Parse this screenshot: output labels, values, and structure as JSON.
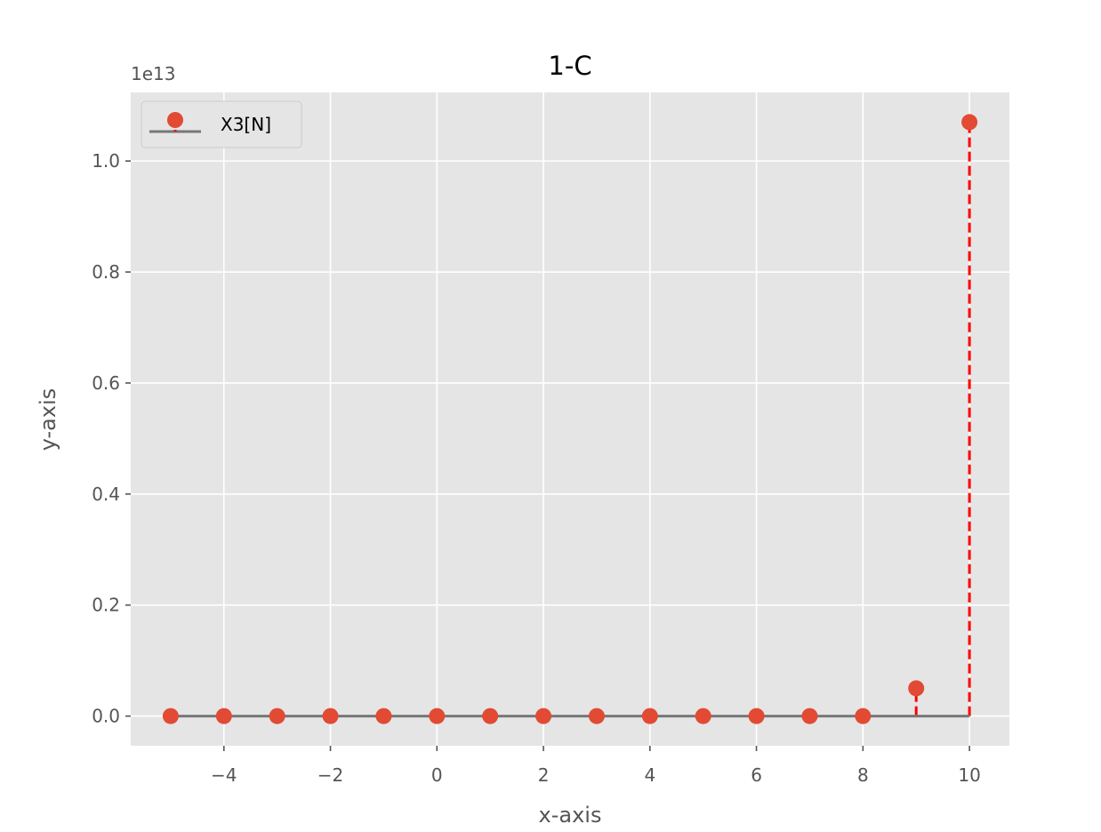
{
  "chart_data": {
    "type": "stem",
    "title": "1-C",
    "xlabel": "x-axis",
    "ylabel": "y-axis",
    "y_offset_label": "1e13",
    "y_scale": 10000000000000.0,
    "xlim": [
      -5.75,
      10.75
    ],
    "ylim": [
      -0.0535,
      1.1235
    ],
    "x_ticks": [
      -4,
      -2,
      0,
      2,
      4,
      6,
      8,
      10
    ],
    "x_tick_labels": [
      "−4",
      "−2",
      "0",
      "2",
      "4",
      "6",
      "8",
      "10"
    ],
    "y_ticks": [
      0.0,
      0.2,
      0.4,
      0.6,
      0.8,
      1.0
    ],
    "y_tick_labels": [
      "0.0",
      "0.2",
      "0.4",
      "0.6",
      "0.8",
      "1.0"
    ],
    "grid": true,
    "legend_position": "upper left",
    "series": [
      {
        "name": "X3[N]",
        "x": [
          -5,
          -4,
          -3,
          -2,
          -1,
          0,
          1,
          2,
          3,
          4,
          5,
          6,
          7,
          8,
          9,
          10
        ],
        "y": [
          0,
          0,
          0,
          0,
          0,
          0,
          0,
          0,
          0,
          0,
          0,
          0,
          0,
          0,
          0.05,
          1.07
        ],
        "marker_color": "#e24a33",
        "stem_color": "#ff0000",
        "baseline_color": "#777777"
      }
    ],
    "style": {
      "plot_background": "#e5e5e5",
      "grid_color": "#ffffff"
    }
  }
}
